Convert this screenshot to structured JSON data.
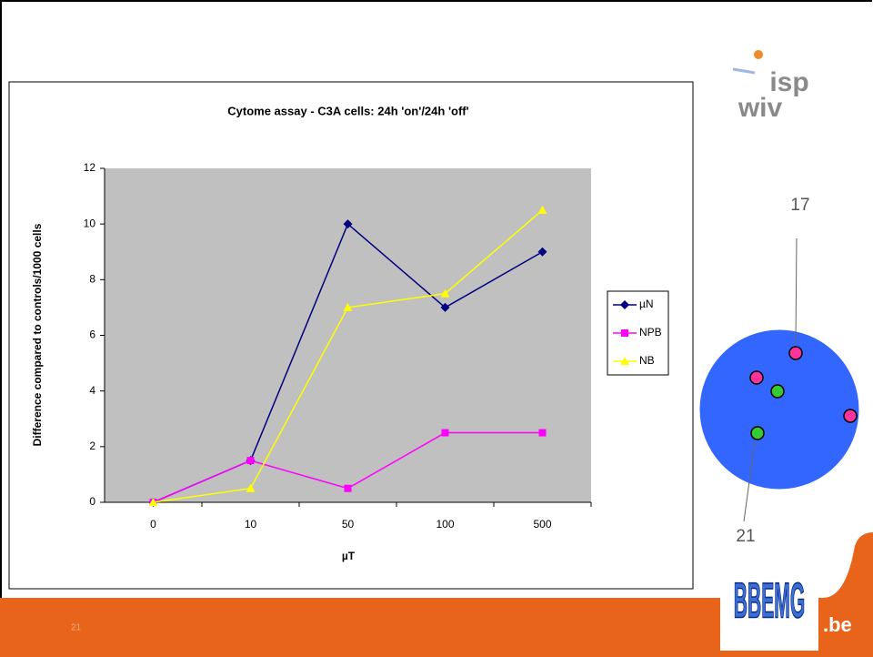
{
  "chart_data": {
    "type": "line",
    "title": "Cytome assay - C3A cells: 24h 'on'/24h 'off'",
    "xlabel": "µT",
    "ylabel": "Difference compared to controls/1000 cells",
    "categories": [
      "0",
      "10",
      "50",
      "100",
      "500"
    ],
    "series": [
      {
        "name": "µN",
        "color": "#000080",
        "marker": "diamond",
        "values": [
          0,
          1.5,
          10,
          7,
          9
        ]
      },
      {
        "name": "NPB",
        "color": "#ff00ff",
        "marker": "square",
        "values": [
          0,
          1.5,
          0.5,
          2.5,
          2.5
        ]
      },
      {
        "name": "NB",
        "color": "#ffff00",
        "marker": "triangle",
        "values": [
          0,
          0.5,
          7,
          7.5,
          10.5
        ]
      }
    ],
    "ylim": [
      0,
      12
    ],
    "yticks": [
      0,
      2,
      4,
      6,
      8,
      10,
      12
    ],
    "grid": false,
    "legend": "right"
  },
  "slide": {
    "logo_top": [
      "isp",
      "wiv"
    ],
    "label_top": "17",
    "label_bottom": "21",
    "logo_bottom": "BBEMG",
    "domain": ".be",
    "page_number": "21"
  }
}
